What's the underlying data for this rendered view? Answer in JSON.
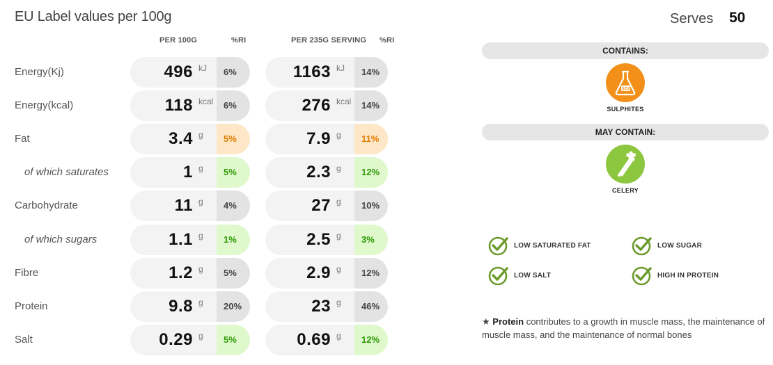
{
  "header": {
    "title": "EU Label values per 100g",
    "serves_label": "Serves",
    "serves_value": "50"
  },
  "columns": {
    "per100": "PER 100G",
    "ri1": "%RI",
    "perServing": "PER 235G SERVING",
    "ri2": "%RI"
  },
  "rows": [
    {
      "label": "Energy(Kj)",
      "sub": false,
      "v100": "496",
      "u100": "kJ",
      "ri100": "6%",
      "c100": "grey",
      "vServ": "1163",
      "uServ": "kJ",
      "riServ": "14%",
      "cServ": "grey"
    },
    {
      "label": "Energy(kcal)",
      "sub": false,
      "v100": "118",
      "u100": "kcal",
      "ri100": "6%",
      "c100": "grey",
      "vServ": "276",
      "uServ": "kcal",
      "riServ": "14%",
      "cServ": "grey"
    },
    {
      "label": "Fat",
      "sub": false,
      "v100": "3.4",
      "u100": "g",
      "ri100": "5%",
      "c100": "orange",
      "vServ": "7.9",
      "uServ": "g",
      "riServ": "11%",
      "cServ": "orange"
    },
    {
      "label": "of which saturates",
      "sub": true,
      "v100": "1",
      "u100": "g",
      "ri100": "5%",
      "c100": "green",
      "vServ": "2.3",
      "uServ": "g",
      "riServ": "12%",
      "cServ": "green"
    },
    {
      "label": "Carbohydrate",
      "sub": false,
      "v100": "11",
      "u100": "g",
      "ri100": "4%",
      "c100": "grey",
      "vServ": "27",
      "uServ": "g",
      "riServ": "10%",
      "cServ": "grey"
    },
    {
      "label": "of which sugars",
      "sub": true,
      "v100": "1.1",
      "u100": "g",
      "ri100": "1%",
      "c100": "green",
      "vServ": "2.5",
      "uServ": "g",
      "riServ": "3%",
      "cServ": "green"
    },
    {
      "label": "Fibre",
      "sub": false,
      "v100": "1.2",
      "u100": "g",
      "ri100": "5%",
      "c100": "grey",
      "vServ": "2.9",
      "uServ": "g",
      "riServ": "12%",
      "cServ": "grey"
    },
    {
      "label": "Protein",
      "sub": false,
      "v100": "9.8",
      "u100": "g",
      "ri100": "20%",
      "c100": "grey",
      "vServ": "23",
      "uServ": "g",
      "riServ": "46%",
      "cServ": "grey"
    },
    {
      "label": "Salt",
      "sub": false,
      "v100": "0.29",
      "u100": "g",
      "ri100": "5%",
      "c100": "green",
      "vServ": "0.69",
      "uServ": "g",
      "riServ": "12%",
      "cServ": "green"
    }
  ],
  "allergens": {
    "contains_label": "CONTAINS:",
    "contains_item": {
      "name": "SULPHITES",
      "icon": "flask-so2-icon",
      "color": "#f39019",
      "badge": "SO2"
    },
    "may_contain_label": "MAY CONTAIN:",
    "may_contain_item": {
      "name": "CELERY",
      "icon": "celery-icon",
      "color": "#8dc63f"
    }
  },
  "claims": [
    "LOW SATURATED FAT",
    "LOW SUGAR",
    "LOW SALT",
    "HIGH IN PROTEIN"
  ],
  "claim_color": "#6a9a2a",
  "note": {
    "star": "★",
    "bold": "Protein",
    "text": " contributes to a growth in muscle mass, the maintenance of muscle mass, and the maintenance of normal bones"
  }
}
